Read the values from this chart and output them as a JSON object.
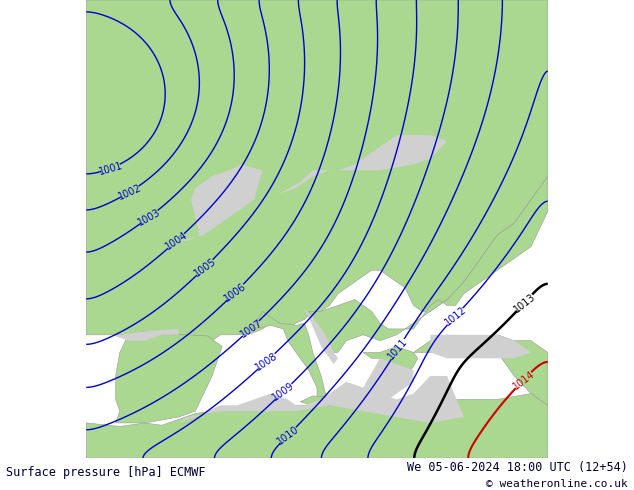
{
  "title_left": "Surface pressure [hPa] ECMWF",
  "title_right": "We 05-06-2024 18:00 UTC (12+54)",
  "copyright": "© weatheronline.co.uk",
  "land_color": "#aad890",
  "sea_color": "#d0d0d0",
  "blue_line_color": "#0000cc",
  "black_line_color": "#000000",
  "red_line_color": "#cc0000",
  "bottom_bar_color": "#ffffff",
  "bottom_text_color": "#000033",
  "figsize": [
    6.34,
    4.9
  ],
  "dpi": 100
}
